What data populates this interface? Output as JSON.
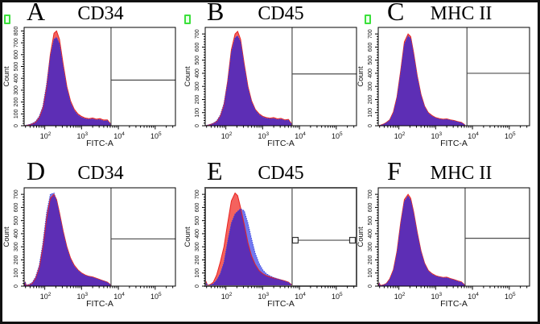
{
  "figure": {
    "description": "Flow cytometry overlay histograms, six panels",
    "xlabel": "FITC-A",
    "ylabel": "Count"
  },
  "colors": {
    "red_fill": "#f4625e",
    "red_stroke": "#e82420",
    "blue_fill": "#7278f0",
    "blue_stroke": "#2e3cdc",
    "overlap_fill": "#5d2eb5",
    "frame": "#000000",
    "frame_bold": "#555555",
    "gate": "#4d4d4d",
    "axis_text": "#111111",
    "green_marker": "#3ce03c"
  },
  "chart_data": [
    {
      "type": "area",
      "label": "A",
      "title": "CD34",
      "xlabel": "FITC-A",
      "ylabel": "Count",
      "x_scale": "log10",
      "x_range": [
        1.44,
        5.55
      ],
      "x_tick_exponents": [
        2,
        3,
        4,
        5
      ],
      "y_max": 830,
      "y_ticks": [
        0,
        100,
        200,
        300,
        400,
        500,
        600,
        700,
        800
      ],
      "gate": {
        "x_decade": 3.8,
        "y_count": 385,
        "handles": false
      },
      "green_marker": true,
      "frame_bold": false,
      "x": [
        1.44,
        1.47,
        1.5,
        1.58,
        1.66,
        1.75,
        1.85,
        1.95,
        2.05,
        2.15,
        2.25,
        2.32,
        2.4,
        2.5,
        2.6,
        2.7,
        2.8,
        2.9,
        3.0,
        3.1,
        3.2,
        3.3,
        3.4,
        3.5,
        3.6,
        3.7,
        3.78,
        3.8
      ],
      "series": [
        {
          "name": "red-series",
          "values": [
            0,
            2,
            3,
            8,
            16,
            30,
            70,
            150,
            330,
            600,
            780,
            800,
            730,
            520,
            330,
            210,
            140,
            100,
            78,
            65,
            60,
            65,
            55,
            60,
            48,
            50,
            20,
            0
          ]
        },
        {
          "name": "blue-series",
          "values": [
            0,
            3,
            4,
            10,
            20,
            36,
            80,
            165,
            350,
            580,
            730,
            745,
            690,
            490,
            310,
            195,
            128,
            90,
            70,
            58,
            54,
            57,
            48,
            52,
            40,
            42,
            15,
            0
          ]
        }
      ]
    },
    {
      "type": "area",
      "label": "B",
      "title": "CD45",
      "xlabel": "FITC-A",
      "ylabel": "Count",
      "x_scale": "log10",
      "x_range": [
        1.44,
        5.55
      ],
      "x_tick_exponents": [
        2,
        3,
        4,
        5
      ],
      "y_max": 750,
      "y_ticks": [
        0,
        100,
        200,
        300,
        400,
        500,
        600,
        700
      ],
      "gate": {
        "x_decade": 3.8,
        "y_count": 395,
        "handles": false
      },
      "green_marker": true,
      "frame_bold": false,
      "x": [
        1.44,
        1.47,
        1.5,
        1.58,
        1.66,
        1.75,
        1.85,
        1.95,
        2.05,
        2.15,
        2.25,
        2.32,
        2.4,
        2.5,
        2.6,
        2.7,
        2.8,
        2.9,
        3.0,
        3.1,
        3.2,
        3.3,
        3.4,
        3.5,
        3.6,
        3.7,
        3.78,
        3.8
      ],
      "series": [
        {
          "name": "red-series",
          "values": [
            0,
            2,
            3,
            9,
            18,
            32,
            75,
            160,
            340,
            580,
            700,
            720,
            660,
            470,
            300,
            190,
            125,
            92,
            72,
            62,
            58,
            62,
            52,
            56,
            45,
            48,
            18,
            0
          ]
        },
        {
          "name": "blue-series",
          "values": [
            0,
            3,
            4,
            11,
            20,
            36,
            82,
            170,
            330,
            560,
            670,
            685,
            640,
            450,
            285,
            180,
            118,
            85,
            66,
            56,
            52,
            55,
            46,
            50,
            40,
            42,
            14,
            0
          ]
        }
      ]
    },
    {
      "type": "area",
      "label": "C",
      "title": "MHC II",
      "xlabel": "FITC-A",
      "ylabel": "Count",
      "x_scale": "log10",
      "x_range": [
        1.44,
        5.55
      ],
      "x_tick_exponents": [
        2,
        3,
        4,
        5
      ],
      "y_max": 750,
      "y_ticks": [
        0,
        100,
        200,
        300,
        400,
        500,
        600,
        700
      ],
      "gate": {
        "x_decade": 3.85,
        "y_count": 400,
        "handles": false
      },
      "green_marker": true,
      "frame_bold": false,
      "x": [
        1.44,
        1.47,
        1.5,
        1.58,
        1.66,
        1.75,
        1.85,
        1.95,
        2.05,
        2.15,
        2.25,
        2.32,
        2.4,
        2.5,
        2.6,
        2.7,
        2.8,
        2.9,
        3.0,
        3.1,
        3.2,
        3.3,
        3.4,
        3.5,
        3.6,
        3.7,
        3.78,
        3.8
      ],
      "series": [
        {
          "name": "red-series",
          "values": [
            0,
            2,
            4,
            12,
            25,
            45,
            105,
            220,
            420,
            640,
            700,
            680,
            560,
            380,
            240,
            150,
            100,
            78,
            62,
            55,
            50,
            52,
            45,
            40,
            32,
            25,
            10,
            0
          ]
        },
        {
          "name": "blue-series",
          "values": [
            0,
            2,
            3,
            10,
            22,
            40,
            95,
            210,
            405,
            620,
            685,
            665,
            545,
            368,
            230,
            142,
            94,
            72,
            58,
            50,
            46,
            48,
            42,
            36,
            28,
            22,
            8,
            0
          ]
        }
      ]
    },
    {
      "type": "area",
      "label": "D",
      "title": "CD34",
      "xlabel": "FITC-A",
      "ylabel": "Count",
      "x_scale": "log10",
      "x_range": [
        1.44,
        5.55
      ],
      "x_tick_exponents": [
        2,
        3,
        4,
        5
      ],
      "y_max": 750,
      "y_ticks": [
        0,
        100,
        200,
        300,
        400,
        500,
        600,
        700
      ],
      "gate": {
        "x_decade": 3.8,
        "y_count": 360,
        "handles": false
      },
      "green_marker": false,
      "frame_bold": false,
      "x": [
        1.44,
        1.47,
        1.5,
        1.58,
        1.66,
        1.75,
        1.85,
        1.95,
        2.05,
        2.15,
        2.25,
        2.32,
        2.4,
        2.5,
        2.6,
        2.7,
        2.8,
        2.9,
        3.0,
        3.1,
        3.2,
        3.3,
        3.4,
        3.5,
        3.6,
        3.7,
        3.78,
        3.8
      ],
      "series": [
        {
          "name": "red-series",
          "values": [
            0,
            28,
            6,
            10,
            22,
            60,
            140,
            300,
            520,
            670,
            700,
            660,
            560,
            420,
            300,
            215,
            160,
            125,
            100,
            85,
            75,
            70,
            60,
            50,
            40,
            30,
            12,
            0
          ]
        },
        {
          "name": "blue-series",
          "values": [
            0,
            32,
            8,
            14,
            28,
            70,
            160,
            330,
            560,
            700,
            710,
            650,
            545,
            405,
            288,
            205,
            150,
            118,
            95,
            80,
            72,
            66,
            56,
            47,
            38,
            28,
            10,
            0
          ]
        }
      ]
    },
    {
      "type": "area",
      "label": "E",
      "title": "CD45",
      "xlabel": "FITC-A",
      "ylabel": "Count",
      "x_scale": "log10",
      "x_range": [
        1.44,
        5.55
      ],
      "x_tick_exponents": [
        2,
        3,
        4,
        5
      ],
      "y_max": 750,
      "y_ticks": [
        0,
        100,
        200,
        300,
        400,
        500,
        600,
        700
      ],
      "gate": {
        "x_decade": 3.8,
        "y_count": 350,
        "handles": true
      },
      "green_marker": false,
      "frame_bold": true,
      "x": [
        1.44,
        1.47,
        1.5,
        1.58,
        1.66,
        1.75,
        1.85,
        1.95,
        2.05,
        2.15,
        2.25,
        2.32,
        2.4,
        2.5,
        2.6,
        2.7,
        2.8,
        2.9,
        3.0,
        3.1,
        3.2,
        3.3,
        3.4,
        3.5,
        3.6,
        3.7,
        3.78,
        3.8
      ],
      "series": [
        {
          "name": "red-series",
          "values": [
            0,
            30,
            6,
            12,
            30,
            85,
            185,
            300,
            480,
            650,
            710,
            690,
            600,
            470,
            330,
            230,
            165,
            120,
            95,
            80,
            70,
            62,
            55,
            48,
            40,
            30,
            12,
            0
          ]
        },
        {
          "name": "blue-series",
          "values": [
            0,
            25,
            5,
            8,
            18,
            45,
            95,
            180,
            340,
            480,
            550,
            570,
            590,
            575,
            480,
            360,
            250,
            175,
            125,
            95,
            78,
            66,
            56,
            46,
            36,
            28,
            10,
            0
          ]
        }
      ]
    },
    {
      "type": "area",
      "label": "F",
      "title": "MHC II",
      "xlabel": "FITC-A",
      "ylabel": "Count",
      "x_scale": "log10",
      "x_range": [
        1.44,
        5.55
      ],
      "x_tick_exponents": [
        2,
        3,
        4,
        5
      ],
      "y_max": 750,
      "y_ticks": [
        0,
        100,
        200,
        300,
        400,
        500,
        600,
        700
      ],
      "gate": {
        "x_decade": 3.8,
        "y_count": 365,
        "handles": false
      },
      "green_marker": false,
      "frame_bold": false,
      "x": [
        1.44,
        1.47,
        1.5,
        1.58,
        1.66,
        1.75,
        1.85,
        1.95,
        2.05,
        2.15,
        2.25,
        2.32,
        2.4,
        2.5,
        2.6,
        2.7,
        2.8,
        2.9,
        3.0,
        3.1,
        3.2,
        3.3,
        3.4,
        3.5,
        3.6,
        3.7,
        3.78,
        3.8
      ],
      "series": [
        {
          "name": "red-series",
          "values": [
            0,
            22,
            5,
            10,
            20,
            55,
            125,
            265,
            485,
            660,
            700,
            670,
            570,
            410,
            270,
            175,
            120,
            95,
            80,
            72,
            66,
            68,
            58,
            50,
            40,
            32,
            12,
            0
          ]
        },
        {
          "name": "blue-series",
          "values": [
            0,
            18,
            4,
            8,
            17,
            48,
            115,
            252,
            468,
            645,
            688,
            655,
            555,
            398,
            260,
            168,
            114,
            90,
            75,
            68,
            62,
            63,
            54,
            46,
            36,
            28,
            10,
            0
          ]
        }
      ]
    }
  ]
}
